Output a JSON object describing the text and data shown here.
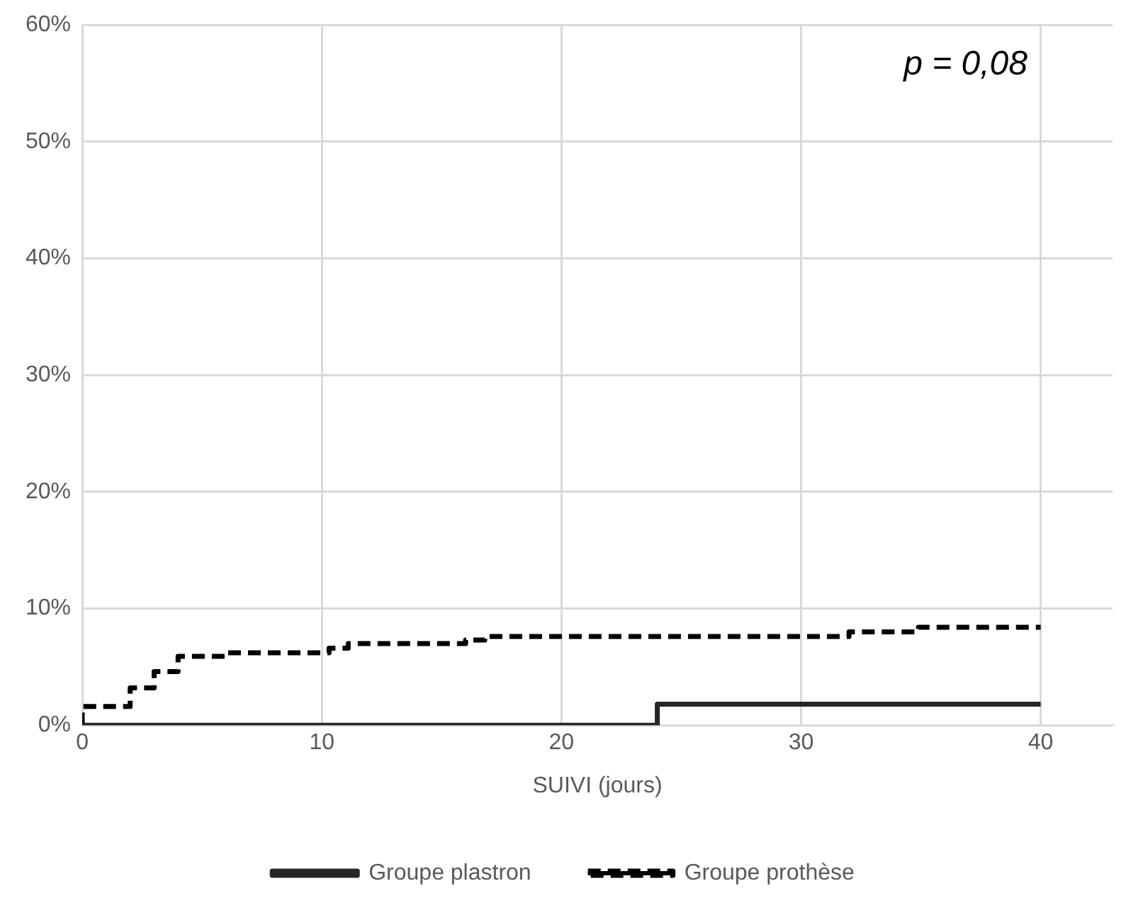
{
  "chart_data": {
    "type": "step",
    "xlabel": "SUIVI (jours)",
    "annotations": [
      "p = 0,08"
    ],
    "xlim": [
      0,
      43
    ],
    "xticks": [
      0,
      10,
      20,
      30,
      40
    ],
    "ylim": [
      0,
      60
    ],
    "yticks": [
      {
        "value": 0,
        "label": "0%"
      },
      {
        "value": 10,
        "label": "10%"
      },
      {
        "value": 20,
        "label": "20%"
      },
      {
        "value": 30,
        "label": "30%"
      },
      {
        "value": 40,
        "label": "40%"
      },
      {
        "value": 50,
        "label": "50%"
      },
      {
        "value": 60,
        "label": "60%"
      }
    ],
    "grid": true,
    "legend": "bottom",
    "marker": "none",
    "series": [
      {
        "name": "Groupe plastron",
        "color": "#262626",
        "line_style": "solid",
        "x": [
          0,
          24,
          40
        ],
        "values": [
          0,
          1.8,
          1.8
        ]
      },
      {
        "name": "Groupe prothèse",
        "color": "#000000",
        "line_style": "dashed",
        "x": [
          0,
          0,
          2,
          3,
          4,
          6,
          10.3,
          11.1,
          16,
          16.8,
          32,
          34.9,
          40
        ],
        "values": [
          0,
          1.6,
          3.2,
          4.6,
          5.9,
          6.2,
          6.6,
          7.0,
          7.3,
          7.6,
          8.0,
          8.4,
          8.4
        ]
      }
    ]
  }
}
